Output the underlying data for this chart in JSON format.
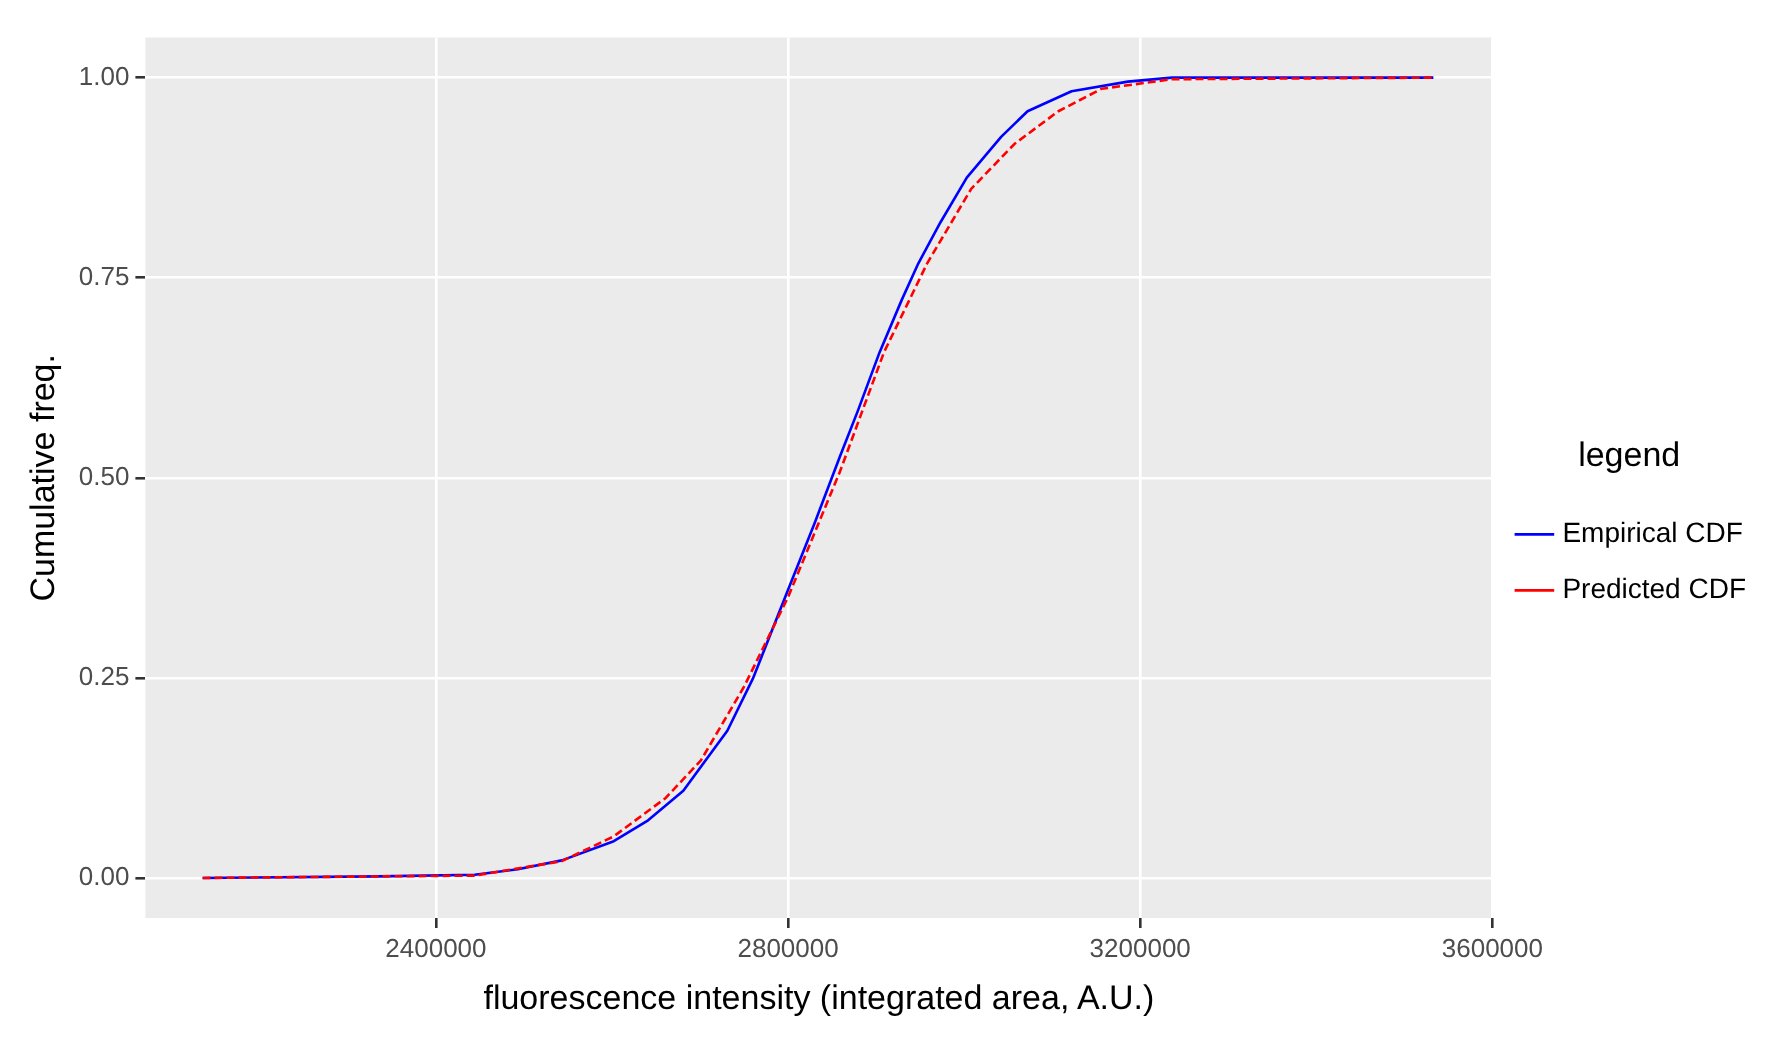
{
  "chart_data": {
    "type": "line",
    "xlabel": "fluorescence intensity (integrated area, A.U.)",
    "ylabel": "Cumulative freq.",
    "legend_title": "legend",
    "legend": "right",
    "grid": true,
    "marker": "none",
    "xlim": [
      2070000,
      3600000
    ],
    "xticks": [
      2400000,
      2800000,
      3200000,
      3600000
    ],
    "ylim": [
      -0.05,
      1.05
    ],
    "yticks": [
      {
        "value": 0,
        "label": "0.00"
      },
      {
        "value": 0.25,
        "label": "0.25"
      },
      {
        "value": 0.5,
        "label": "0.50"
      },
      {
        "value": 0.75,
        "label": "0.75"
      },
      {
        "value": 1,
        "label": "1.00"
      }
    ],
    "series": [
      {
        "name": "Empirical CDF",
        "color": "#0000ff",
        "line_style": "solid",
        "x": [
          2135000,
          2335000,
          2444000,
          2493000,
          2543000,
          2602000,
          2641000,
          2681000,
          2731000,
          2760000,
          2800000,
          2830000,
          2859000,
          2879000,
          2904000,
          2929000,
          2948000,
          2973000,
          3003000,
          3042000,
          3072000,
          3122000,
          3186000,
          3236000,
          3533000
        ],
        "values": [
          0,
          0.002,
          0.004,
          0.011,
          0.022,
          0.046,
          0.072,
          0.109,
          0.184,
          0.249,
          0.36,
          0.443,
          0.527,
          0.583,
          0.657,
          0.722,
          0.768,
          0.819,
          0.875,
          0.926,
          0.958,
          0.983,
          0.995,
          1,
          1
        ]
      },
      {
        "name": "Predicted CDF",
        "color": "#ff0000",
        "line_style": "dashed",
        "x": [
          2135000,
          2444000,
          2543000,
          2602000,
          2661000,
          2701000,
          2750000,
          2800000,
          2859000,
          2909000,
          2958000,
          3008000,
          3057000,
          3107000,
          3156000,
          3236000,
          3533000
        ],
        "values": [
          0,
          0.003,
          0.021,
          0.052,
          0.1,
          0.147,
          0.239,
          0.351,
          0.508,
          0.657,
          0.768,
          0.861,
          0.917,
          0.958,
          0.986,
          0.998,
          1
        ]
      }
    ]
  }
}
